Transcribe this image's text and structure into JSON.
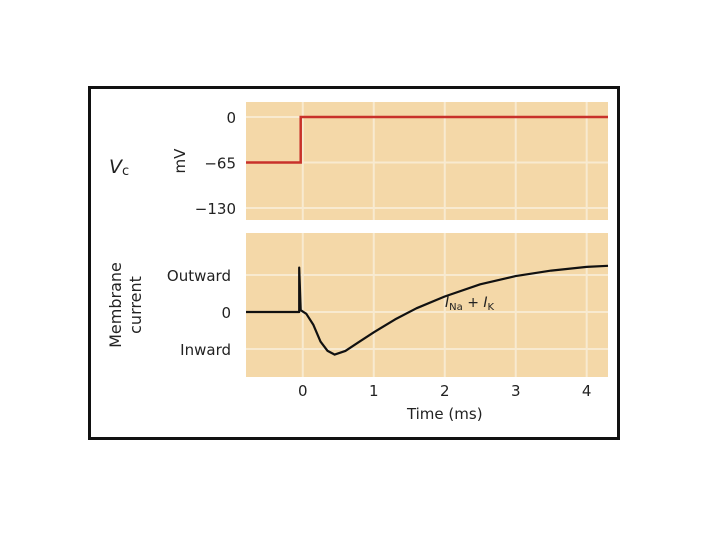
{
  "chart_data": [
    {
      "type": "line",
      "ylabel": "mV",
      "left_label_main": "V",
      "left_label_sub": "c",
      "y_ticks": [
        {
          "value": 0,
          "label": "0"
        },
        {
          "value": -65,
          "label": "−65"
        },
        {
          "value": -130,
          "label": "−130"
        }
      ],
      "ylim": [
        -130,
        0
      ],
      "xlim": [
        -0.8,
        4.3
      ],
      "grid": true,
      "series": [
        {
          "color": "#c8312a",
          "points": [
            [
              -0.8,
              -65
            ],
            [
              -0.03,
              -65
            ],
            [
              -0.03,
              0
            ],
            [
              4.3,
              0
            ]
          ]
        }
      ]
    },
    {
      "type": "line",
      "ylabel": "Membrane current",
      "y_ticks": [
        {
          "value": 1,
          "label": "Outward"
        },
        {
          "value": 0,
          "label": "0"
        },
        {
          "value": -1,
          "label": "Inward"
        }
      ],
      "ylim": [
        -1,
        1
      ],
      "xlim": [
        -0.8,
        4.3
      ],
      "xlabel": "Time (ms)",
      "x_ticks": [
        0,
        1,
        2,
        3,
        4
      ],
      "grid": true,
      "annotation": {
        "main1": "I",
        "sub1": "Na",
        "plus": " + ",
        "main2": "I",
        "sub2": "K"
      },
      "series": [
        {
          "color": "#111111",
          "points": [
            [
              -0.8,
              0
            ],
            [
              -0.05,
              0
            ],
            [
              -0.05,
              1.2
            ],
            [
              -0.03,
              0.05
            ],
            [
              0.05,
              -0.05
            ],
            [
              0.15,
              -0.35
            ],
            [
              0.25,
              -0.8
            ],
            [
              0.35,
              -1.05
            ],
            [
              0.45,
              -1.15
            ],
            [
              0.6,
              -1.05
            ],
            [
              0.8,
              -0.8
            ],
            [
              1.0,
              -0.55
            ],
            [
              1.3,
              -0.2
            ],
            [
              1.6,
              0.1
            ],
            [
              2.0,
              0.42
            ],
            [
              2.5,
              0.75
            ],
            [
              3.0,
              0.97
            ],
            [
              3.5,
              1.12
            ],
            [
              4.0,
              1.22
            ],
            [
              4.3,
              1.25
            ]
          ]
        }
      ]
    }
  ]
}
